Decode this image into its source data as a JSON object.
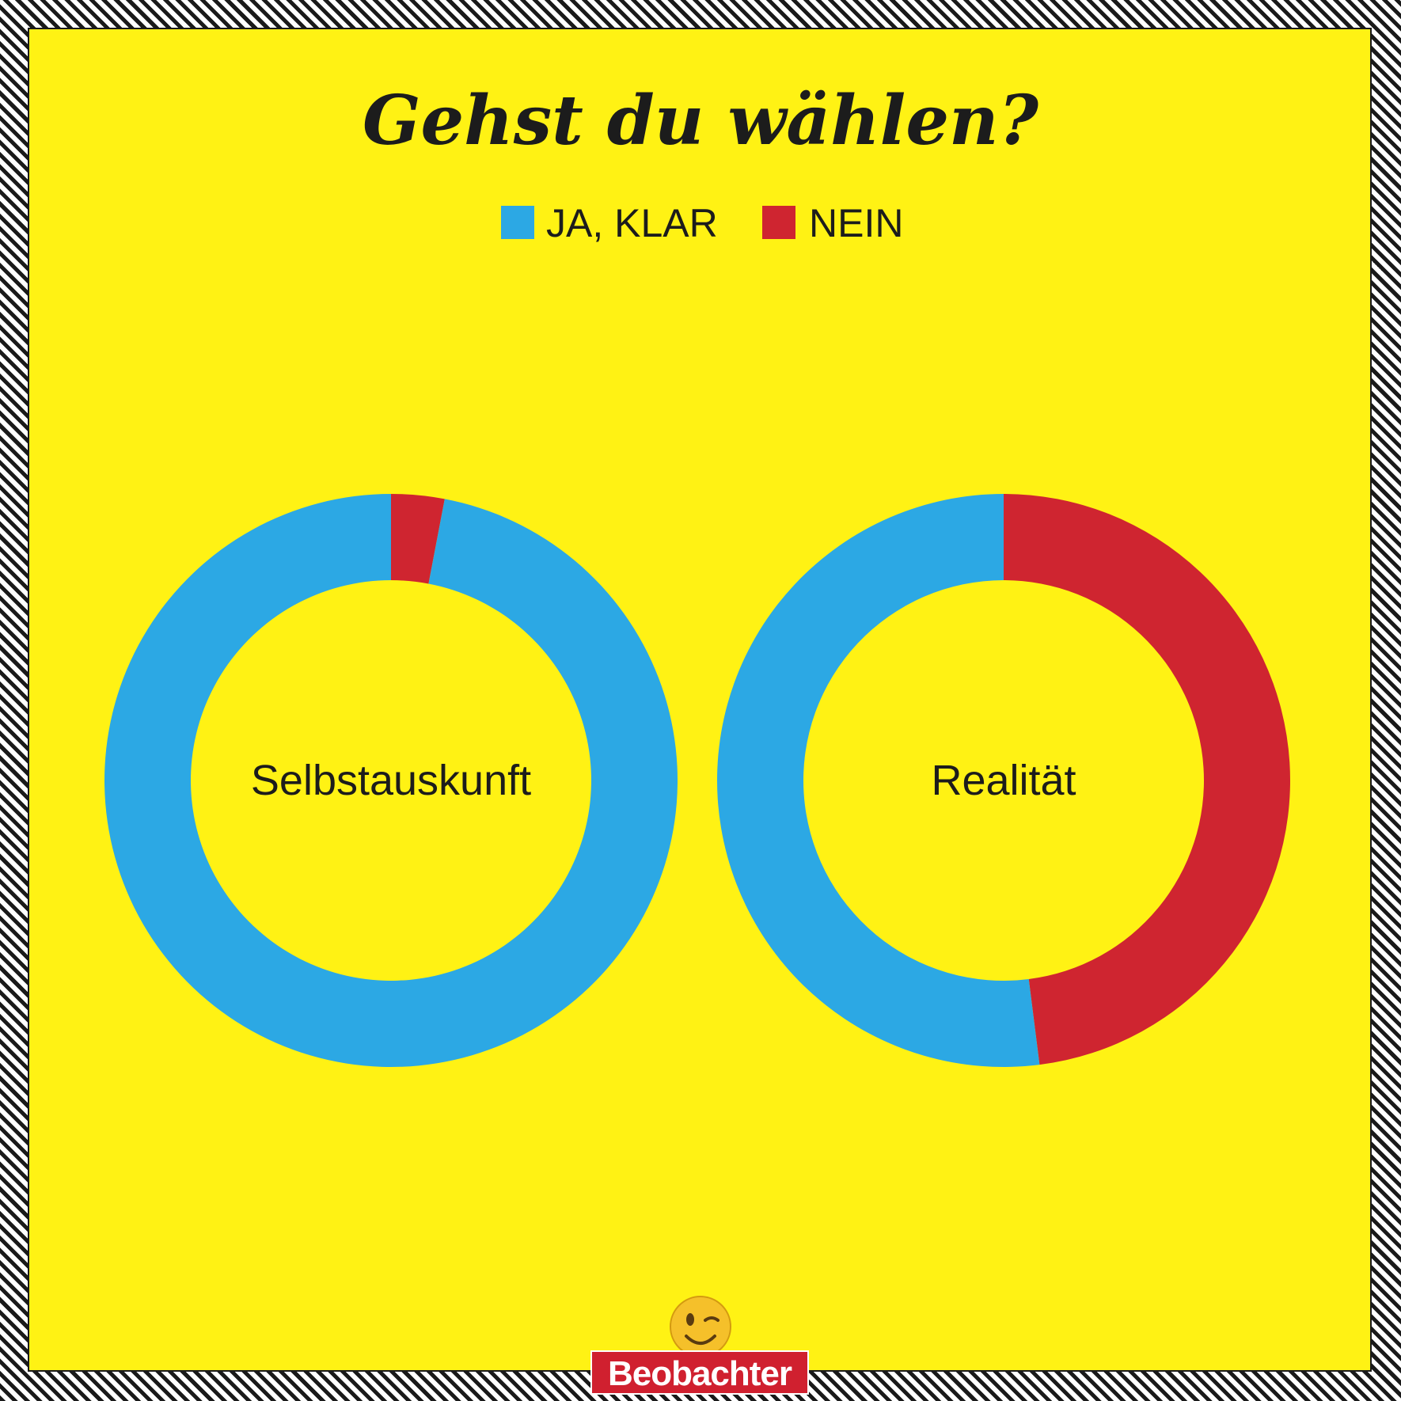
{
  "chart_data": {
    "type": "pie",
    "style": "donut",
    "title": "Gehst du wählen?",
    "legend": {
      "placement": "top-center",
      "entries": [
        "JA, KLAR",
        "NEIN"
      ]
    },
    "colors": {
      "ja": "#2ca8e4",
      "nein": "#cf2530"
    },
    "charts": [
      {
        "label": "Selbstauskunft",
        "slices": [
          {
            "name": "JA, KLAR",
            "value": 97
          },
          {
            "name": "NEIN",
            "value": 3
          }
        ]
      },
      {
        "label": "Realität",
        "slices": [
          {
            "name": "JA, KLAR",
            "value": 52
          },
          {
            "name": "NEIN",
            "value": 48
          }
        ]
      }
    ]
  },
  "emoji": {
    "name": "winking-face-icon"
  },
  "brand": {
    "logo_text": "Beobachter",
    "color": "#d0202f"
  }
}
